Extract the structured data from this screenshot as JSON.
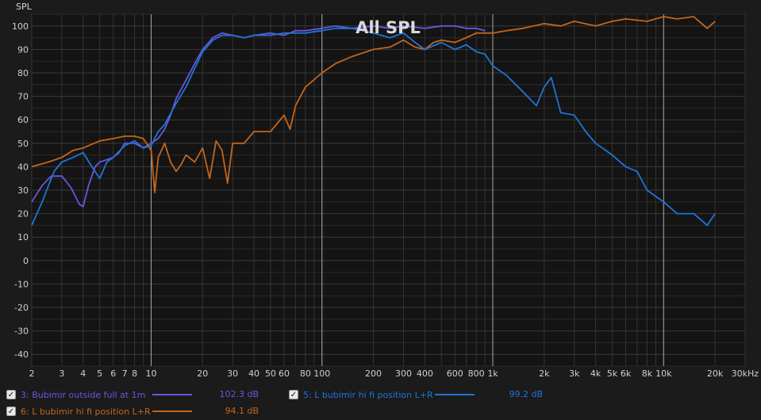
{
  "chart_data": {
    "type": "line",
    "title": "All SPL",
    "ylabel": "SPL",
    "xlabel": "",
    "x_scale": "log",
    "xlim": [
      2,
      30000
    ],
    "ylim": [
      -45,
      105
    ],
    "grid": true,
    "x_ticks": [
      {
        "v": 2,
        "label": "2"
      },
      {
        "v": 3,
        "label": "3"
      },
      {
        "v": 4,
        "label": "4"
      },
      {
        "v": 5,
        "label": "5"
      },
      {
        "v": 6,
        "label": "6"
      },
      {
        "v": 7,
        "label": "7"
      },
      {
        "v": 8,
        "label": "8"
      },
      {
        "v": 10,
        "label": "10"
      },
      {
        "v": 20,
        "label": "20"
      },
      {
        "v": 30,
        "label": "30"
      },
      {
        "v": 40,
        "label": "40"
      },
      {
        "v": 50,
        "label": "50"
      },
      {
        "v": 60,
        "label": "60"
      },
      {
        "v": 80,
        "label": "80"
      },
      {
        "v": 100,
        "label": "100"
      },
      {
        "v": 200,
        "label": "200"
      },
      {
        "v": 300,
        "label": "300"
      },
      {
        "v": 400,
        "label": "400"
      },
      {
        "v": 600,
        "label": "600"
      },
      {
        "v": 800,
        "label": "800"
      },
      {
        "v": 1000,
        "label": "1k"
      },
      {
        "v": 2000,
        "label": "2k"
      },
      {
        "v": 3000,
        "label": "3k"
      },
      {
        "v": 4000,
        "label": "4k"
      },
      {
        "v": 5000,
        "label": "5k"
      },
      {
        "v": 6000,
        "label": "6k"
      },
      {
        "v": 8000,
        "label": "8k"
      },
      {
        "v": 10000,
        "label": "10k"
      },
      {
        "v": 20000,
        "label": "20k"
      },
      {
        "v": 30000,
        "label": "30kHz"
      }
    ],
    "y_ticks": [
      100,
      90,
      80,
      70,
      60,
      50,
      40,
      30,
      20,
      10,
      0,
      -10,
      -20,
      -30,
      -40
    ],
    "series": [
      {
        "name": "3: Bubimir outside full at 1m",
        "color": "#6a55e0",
        "x": [
          2,
          2.3,
          2.6,
          3,
          3.4,
          3.8,
          4,
          4.3,
          4.7,
          5,
          5.5,
          6,
          6.5,
          7,
          8,
          9,
          10,
          11,
          12,
          13,
          14,
          16,
          18,
          20,
          23,
          26,
          30,
          35,
          40,
          50,
          60,
          70,
          80,
          100,
          120,
          150,
          200,
          250,
          300,
          400,
          500,
          600,
          700,
          800,
          900
        ],
        "y": [
          25,
          32,
          36,
          36,
          31,
          24,
          23,
          32,
          40,
          42,
          43,
          44,
          46,
          50,
          50,
          48,
          50,
          52,
          56,
          62,
          69,
          77,
          84,
          90,
          95,
          97,
          96,
          95,
          96,
          97,
          96,
          98,
          98,
          99,
          100,
          99,
          100,
          99,
          100,
          99,
          100,
          100,
          99,
          99,
          98
        ]
      },
      {
        "name": "6: L bubimir hi fi position L+R",
        "color": "#c4651a",
        "x": [
          2,
          2.5,
          3,
          3.5,
          4,
          5,
          6,
          7,
          8,
          9,
          10,
          10.5,
          11,
          12,
          13,
          14,
          15,
          16,
          18,
          20,
          22,
          24,
          26,
          28,
          30,
          35,
          40,
          50,
          60,
          65,
          70,
          80,
          100,
          120,
          150,
          200,
          250,
          300,
          350,
          400,
          450,
          500,
          600,
          700,
          800,
          1000,
          1200,
          1500,
          2000,
          2500,
          3000,
          4000,
          5000,
          6000,
          8000,
          10000,
          12000,
          15000,
          18000,
          20000
        ],
        "y": [
          40,
          42,
          44,
          47,
          48,
          51,
          52,
          53,
          53,
          52,
          47,
          29,
          44,
          50,
          42,
          38,
          41,
          45,
          42,
          48,
          35,
          51,
          47,
          33,
          50,
          50,
          55,
          55,
          62,
          56,
          66,
          74,
          80,
          84,
          87,
          90,
          91,
          94,
          91,
          90,
          93,
          94,
          93,
          95,
          97,
          97,
          98,
          99,
          101,
          100,
          102,
          100,
          102,
          103,
          102,
          104,
          103,
          104,
          99,
          102
        ]
      },
      {
        "name": "5: L bubimir hi fi position L+R",
        "color": "#1f74d6",
        "x": [
          2,
          2.3,
          2.7,
          3,
          3.5,
          4,
          4.5,
          5,
          5.5,
          6,
          7,
          8,
          9,
          10,
          11,
          12,
          14,
          16,
          18,
          20,
          23,
          26,
          30,
          35,
          40,
          50,
          60,
          70,
          80,
          100,
          120,
          150,
          200,
          250,
          300,
          350,
          400,
          500,
          600,
          700,
          800,
          900,
          1000,
          1200,
          1500,
          1800,
          2000,
          2200,
          2500,
          3000,
          3500,
          4000,
          5000,
          6000,
          7000,
          8000,
          10000,
          12000,
          15000,
          18000,
          20000
        ],
        "y": [
          15,
          25,
          38,
          42,
          44,
          46,
          40,
          35,
          42,
          44,
          49,
          51,
          48,
          49,
          55,
          58,
          67,
          74,
          82,
          89,
          94,
          96,
          96,
          95,
          96,
          96,
          97,
          97,
          97,
          98,
          99,
          99,
          97,
          95,
          97,
          93,
          90,
          93,
          90,
          92,
          89,
          88,
          83,
          79,
          72,
          66,
          74,
          78,
          63,
          62,
          55,
          50,
          45,
          40,
          38,
          30,
          25,
          20,
          20,
          15,
          20
        ]
      }
    ]
  },
  "legend": [
    {
      "label": "3: Bubimir outside full at 1m",
      "value": "102.3 dB",
      "color": "#6a55e0"
    },
    {
      "label": "5: L bubimir hi fi position L+R",
      "value": "99.2 dB",
      "color": "#1f74d6"
    },
    {
      "label": "6: L bubimir hi fi position L+R",
      "value": "94.1 dB",
      "color": "#c4651a"
    }
  ],
  "colors": {
    "background": "#1b1b1b",
    "plot_bg": "#141414",
    "grid": "#3a3a3a",
    "grid_major": "#9a9a9a",
    "text": "#d0d0d0"
  }
}
